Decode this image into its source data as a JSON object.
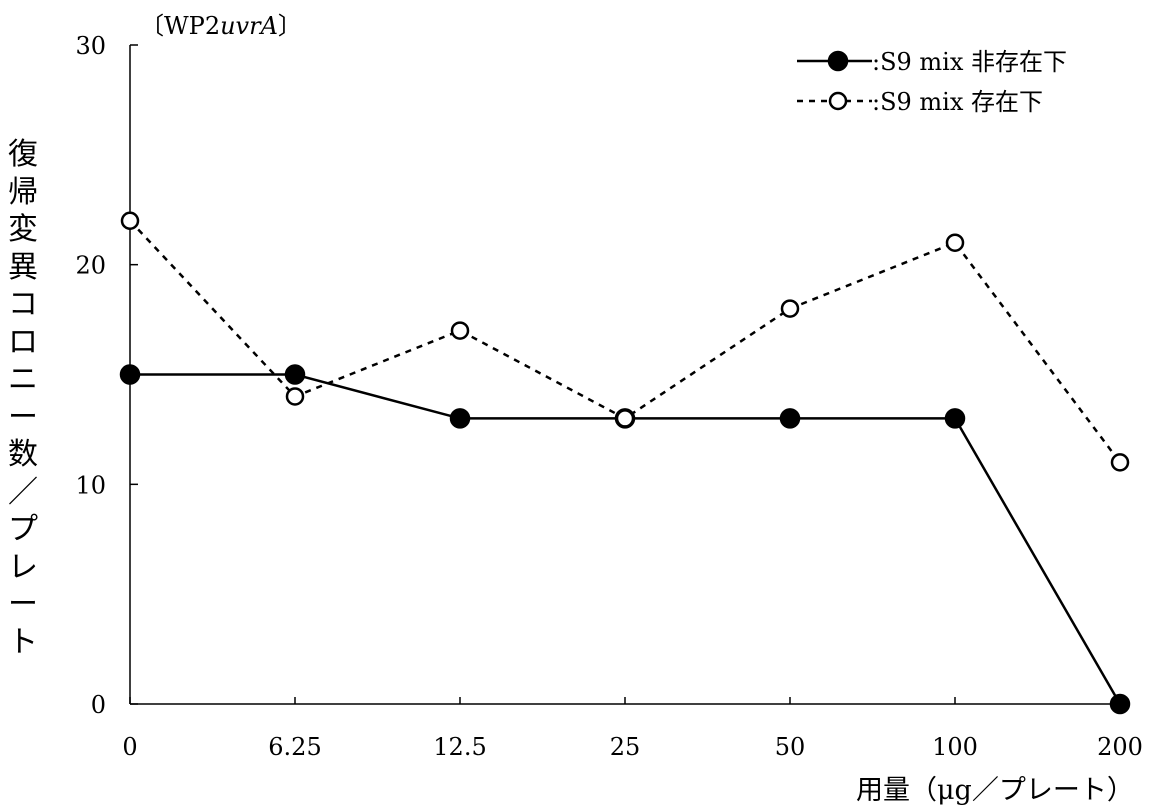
{
  "chart_data": {
    "type": "line",
    "panel_label": {
      "open": "〔",
      "prefix": "WP2",
      "italic": "uvrA",
      "close": "〕"
    },
    "xlabel": "用量（μg／プレート）",
    "ylabel": "復帰変異コロニー数／プレート",
    "categories": [
      "0",
      "6.25",
      "12.5",
      "25",
      "50",
      "100",
      "200"
    ],
    "ylim": [
      0,
      30
    ],
    "yticks": [
      "0",
      "10",
      "20",
      "30"
    ],
    "grid": false,
    "legend_position": "top-right",
    "series": [
      {
        "name": ":S9 mix 非存在下",
        "values": [
          15,
          15,
          13,
          13,
          13,
          13,
          0
        ],
        "line_style": "solid",
        "marker": "filled-circle",
        "color": "#000000"
      },
      {
        "name": ":S9 mix 存在下",
        "values": [
          22,
          14,
          17,
          13,
          18,
          21,
          11
        ],
        "line_style": "dashed",
        "marker": "open-circle",
        "color": "#000000"
      }
    ]
  }
}
